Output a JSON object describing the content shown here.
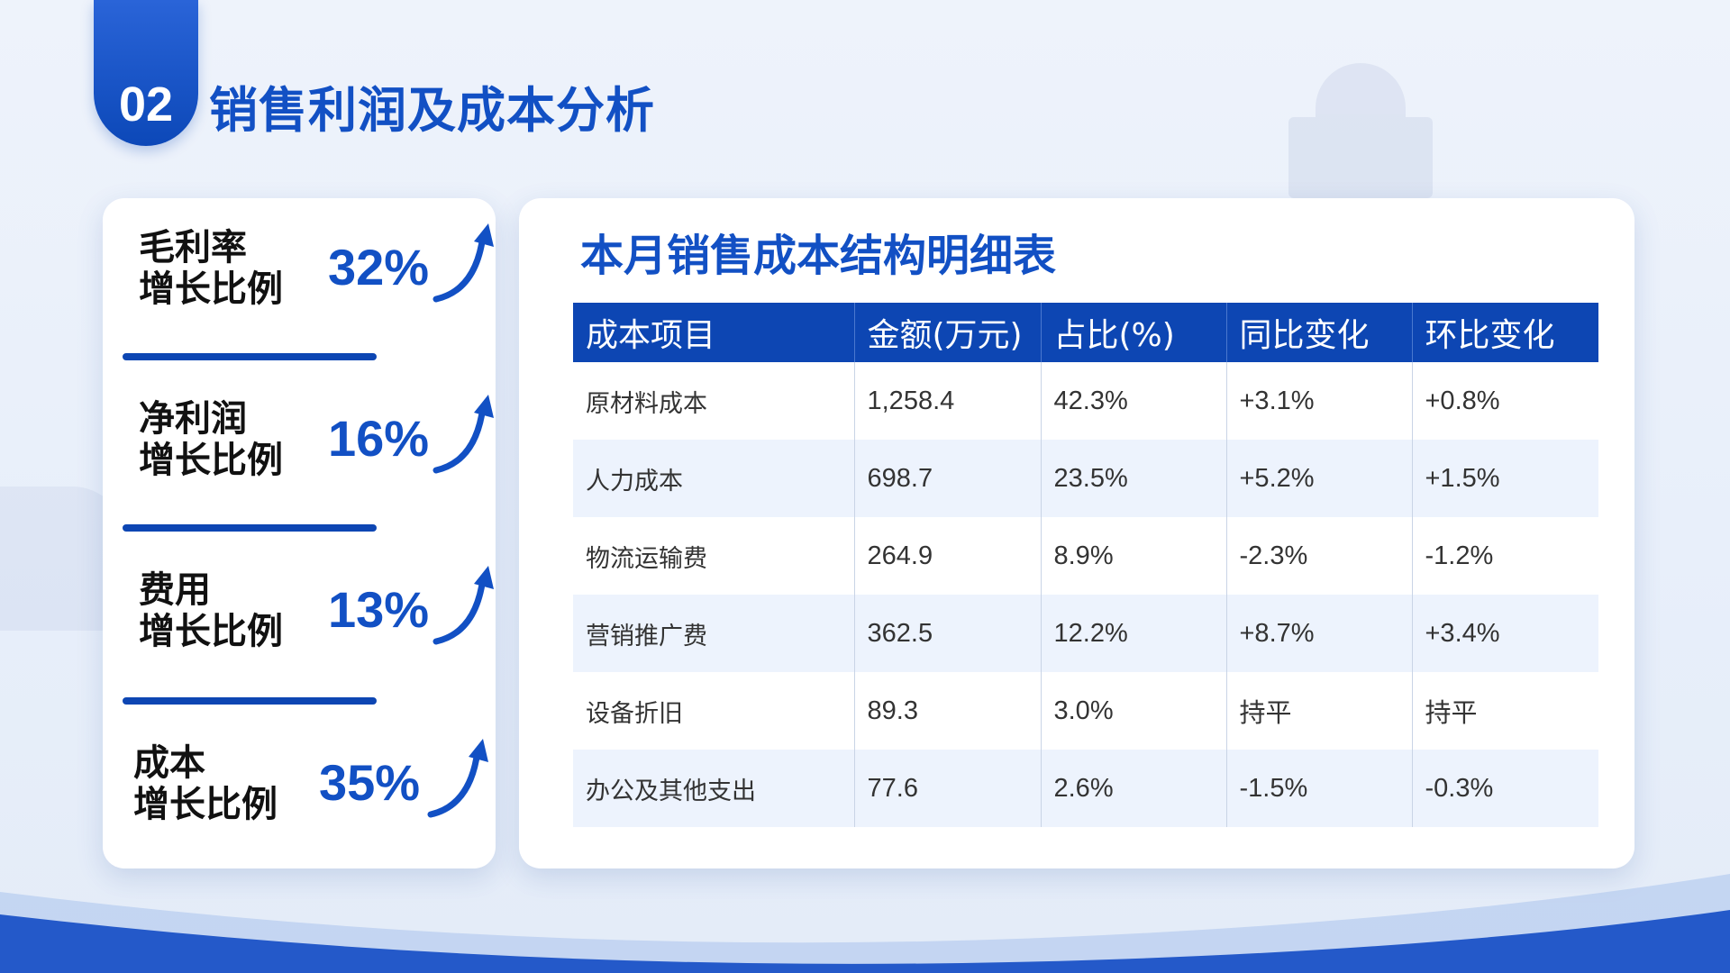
{
  "header": {
    "section_number": "02",
    "title": "销售利润及成本分析"
  },
  "metrics": [
    {
      "label_line1": "毛利率",
      "label_line2": "增长比例",
      "value": "32%"
    },
    {
      "label_line1": "净利润",
      "label_line2": "增长比例",
      "value": "16%"
    },
    {
      "label_line1": "费用",
      "label_line2": "增长比例",
      "value": "13%"
    },
    {
      "label_line1": "成本",
      "label_line2": "增长比例",
      "value": "35%"
    }
  ],
  "table": {
    "title": "本月销售成本结构明细表",
    "headers": [
      "成本项目",
      "金额(万元)",
      "占比(%)",
      "同比变化",
      "环比变化"
    ],
    "rows": [
      [
        "原材料成本",
        "1,258.4",
        "42.3%",
        "+3.1%",
        "+0.8%"
      ],
      [
        "人力成本",
        "698.7",
        "23.5%",
        "+5.2%",
        "+1.5%"
      ],
      [
        "物流运输费",
        "264.9",
        "8.9%",
        "-2.3%",
        "-1.2%"
      ],
      [
        "营销推广费",
        "362.5",
        "12.2%",
        "+8.7%",
        "+3.4%"
      ],
      [
        "设备折旧",
        "89.3",
        "3.0%",
        "持平",
        "持平"
      ],
      [
        "办公及其他支出",
        "77.6",
        "2.6%",
        "-1.5%",
        "-0.3%"
      ]
    ]
  },
  "colors": {
    "brand_blue": "#1250c4",
    "header_blue": "#0d46b3",
    "row_alt": "#edf3fd"
  },
  "icons": {
    "metric_trend": "up-arrow-icon"
  }
}
